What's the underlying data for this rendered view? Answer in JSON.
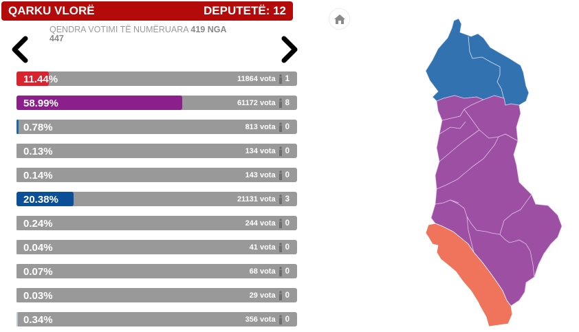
{
  "header": {
    "title": "QARKU VLORË",
    "deputies_label": "DEPUTETË: 12",
    "color": "#b50a0a"
  },
  "counted": {
    "prefix": "QENDRA VOTIMI TË NUMËRUARA",
    "counted": "419",
    "of_label": "NGA",
    "total": "447"
  },
  "nav": {
    "prev_icon": "chevron-left-icon",
    "next_icon": "chevron-right-icon",
    "home_icon": "home-icon"
  },
  "results": [
    {
      "percent": "11.44%",
      "percent_value": 11.44,
      "votes": "11864 vota",
      "seats": "1",
      "color": "#d9232e"
    },
    {
      "percent": "58.99%",
      "percent_value": 58.99,
      "votes": "61172 vota",
      "seats": "8",
      "color": "#8b1f8c"
    },
    {
      "percent": "0.78%",
      "percent_value": 0.78,
      "votes": "813 vota",
      "seats": "0",
      "color": "#1b6aa5"
    },
    {
      "percent": "0.13%",
      "percent_value": 0.13,
      "votes": "134 vota",
      "seats": "0",
      "color": "#999999"
    },
    {
      "percent": "0.14%",
      "percent_value": 0.14,
      "votes": "143 vota",
      "seats": "0",
      "color": "#999999"
    },
    {
      "percent": "20.38%",
      "percent_value": 20.38,
      "votes": "21131 vota",
      "seats": "3",
      "color": "#0b4f99"
    },
    {
      "percent": "0.24%",
      "percent_value": 0.24,
      "votes": "244 vota",
      "seats": "0",
      "color": "#999999"
    },
    {
      "percent": "0.04%",
      "percent_value": 0.04,
      "votes": "41 vota",
      "seats": "0",
      "color": "#999999"
    },
    {
      "percent": "0.07%",
      "percent_value": 0.07,
      "votes": "68 vota",
      "seats": "0",
      "color": "#999999"
    },
    {
      "percent": "0.03%",
      "percent_value": 0.03,
      "votes": "29 vota",
      "seats": "0",
      "color": "#999999"
    },
    {
      "percent": "0.34%",
      "percent_value": 0.34,
      "votes": "356 vota",
      "seats": "0",
      "color": "#b8c9d9"
    }
  ],
  "map": {
    "regions": [
      {
        "name": "north",
        "color": "#3372b0"
      },
      {
        "name": "center",
        "color": "#9c4fa3"
      },
      {
        "name": "vlore",
        "color": "#f0735b"
      }
    ],
    "border_color": "#e6c6ea"
  }
}
